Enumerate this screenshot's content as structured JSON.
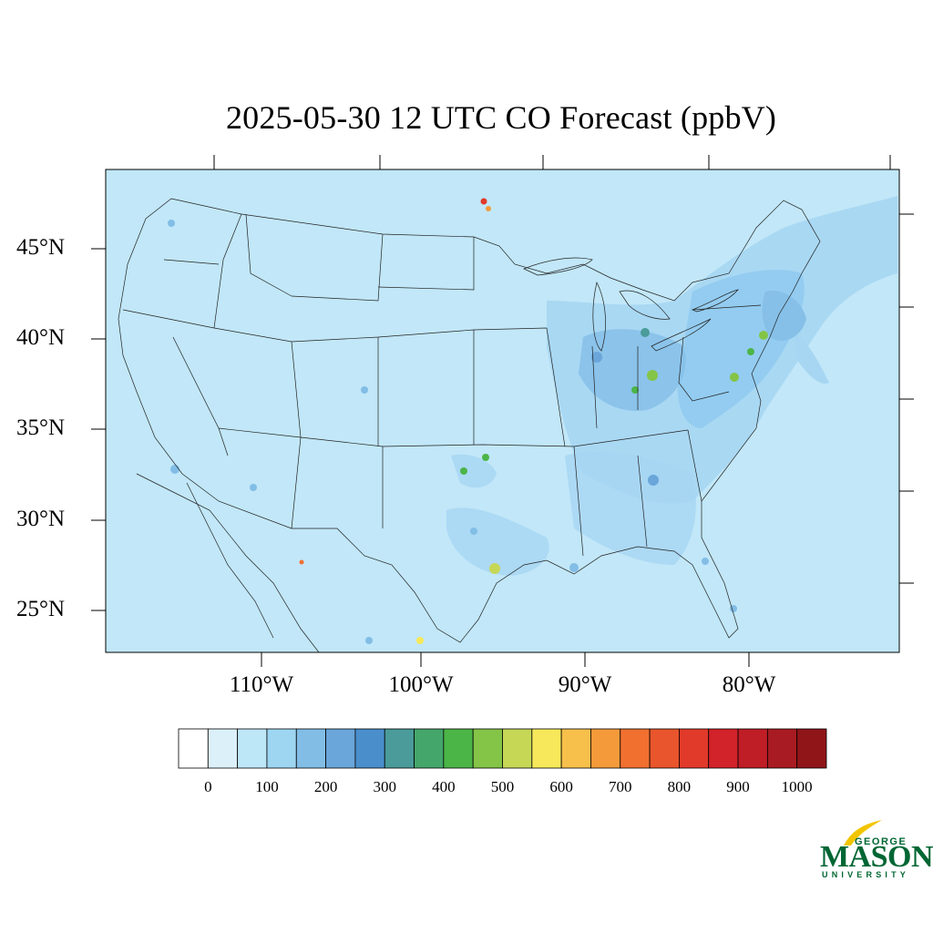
{
  "title": "2025-05-30 12 UTC CO Forecast (ppbV)",
  "lat_labels": [
    "45°N",
    "40°N",
    "35°N",
    "30°N",
    "25°N"
  ],
  "lon_labels": [
    "110°W",
    "100°W",
    "90°W",
    "80°W"
  ],
  "colorbar": {
    "tick_labels": [
      "0",
      "100",
      "200",
      "300",
      "400",
      "500",
      "600",
      "700",
      "800",
      "900",
      "1000"
    ],
    "colors": [
      "#ffffff",
      "#dcf0fa",
      "#bde6f7",
      "#9ed6f2",
      "#82bde6",
      "#6aa6da",
      "#4a8ecc",
      "#4a9b9a",
      "#45a66b",
      "#4cb548",
      "#84c447",
      "#c6d756",
      "#f6e85a",
      "#f7c04b",
      "#f59a3a",
      "#f17030",
      "#e9552c",
      "#e1392a",
      "#d2222a",
      "#bf1e26",
      "#a91b22",
      "#8f1519"
    ]
  },
  "map": {
    "background_color": "#c1e7f8",
    "enhanced_color": "#a6d6f2",
    "high_color": "#86c0e8"
  },
  "logo": {
    "line1": "GEORGE",
    "line2": "MASON",
    "line3": "UNIVERSITY"
  }
}
